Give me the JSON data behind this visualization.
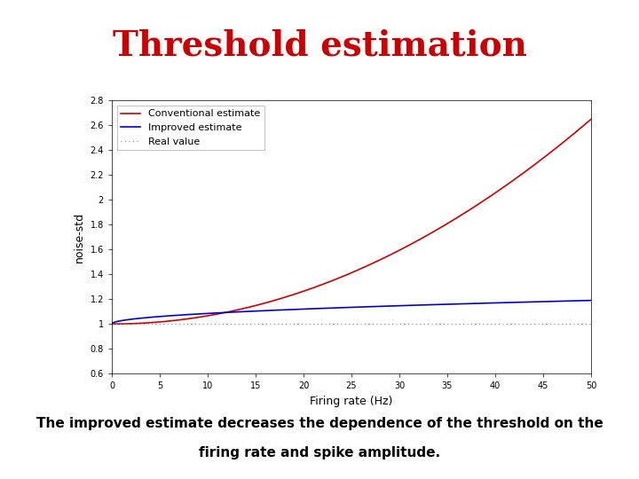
{
  "title": "Threshold estimation",
  "title_color": "#cc0000",
  "xlabel": "Firing rate (Hz)",
  "ylabel": "noise-std",
  "xlim": [
    0,
    50
  ],
  "ylim": [
    0.6,
    2.8
  ],
  "xticks": [
    0,
    5,
    10,
    15,
    20,
    25,
    30,
    35,
    40,
    45,
    50
  ],
  "yticks": [
    0.6,
    0.8,
    1.0,
    1.2,
    1.4,
    1.6,
    1.8,
    2.0,
    2.2,
    2.4,
    2.6,
    2.8
  ],
  "line_conventional_color": "#cc0000",
  "line_improved_color": "#0000cc",
  "line_real_color": "#888888",
  "legend_labels": [
    "Conventional estimate",
    "Improved estimate",
    "Real value"
  ],
  "caption_line1": "The improved estimate decreases the dependence of the threshold on the",
  "caption_line2": "firing rate and spike amplitude.",
  "background_color": "#ffffff",
  "plot_bg_color": "#ffffff",
  "title_fontsize": 28,
  "axis_fontsize": 9,
  "tick_fontsize": 7,
  "legend_fontsize": 8,
  "caption_fontsize": 11,
  "conv_exponent": 2.0,
  "conv_scale": 0.00068,
  "improved_scale": 0.00385,
  "improved_exponent": 1.5
}
